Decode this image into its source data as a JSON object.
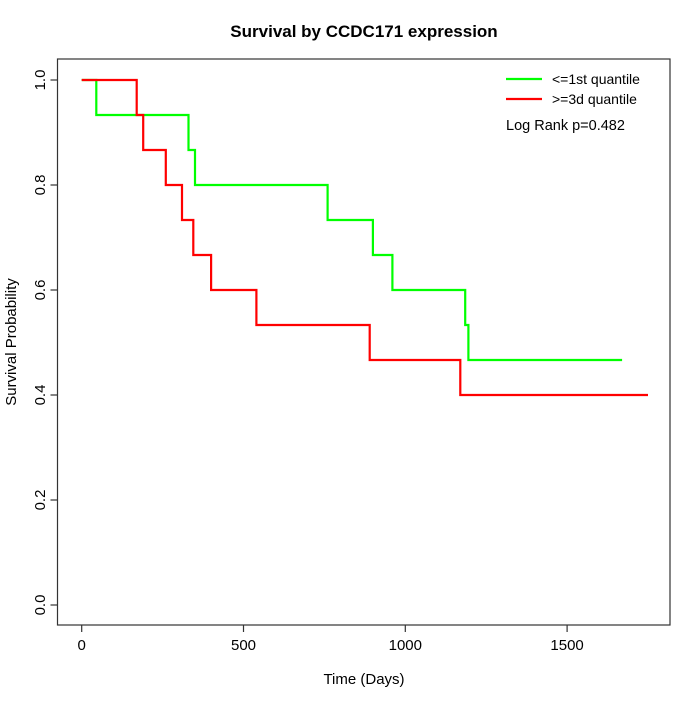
{
  "title": "Survival by CCDC171 expression",
  "x_axis": {
    "label": "Time (Days)",
    "ticks": [
      "0",
      "500",
      "1000",
      "1500"
    ],
    "tick_values": [
      0,
      500,
      1000,
      1500
    ]
  },
  "y_axis": {
    "label": "Survival Probability",
    "ticks": [
      "0.0",
      "0.2",
      "0.4",
      "0.6",
      "0.8",
      "1.0"
    ],
    "tick_values": [
      0,
      0.2,
      0.4,
      0.6,
      0.8,
      1.0
    ]
  },
  "legend": {
    "items": [
      {
        "label": "<=1st quantile",
        "color": "#00ff00"
      },
      {
        "label": ">=3d quantile",
        "color": "#ff0000"
      }
    ],
    "stat_label": "Log Rank p=0.482"
  },
  "chart_data": {
    "type": "line",
    "variant": "kaplan-meier-step",
    "title": "Survival by CCDC171 expression",
    "xlabel": "Time (Days)",
    "ylabel": "Survival Probability",
    "xlim": [
      0,
      1800
    ],
    "ylim": [
      0,
      1
    ],
    "x_ticks": [
      0,
      500,
      1000,
      1500
    ],
    "y_ticks": [
      0.0,
      0.2,
      0.4,
      0.6,
      0.8,
      1.0
    ],
    "grid": false,
    "legend_position": "top-right",
    "annotation": "Log Rank p=0.482",
    "series": [
      {
        "name": "<=1st quantile",
        "color": "#00ff00",
        "start": [
          0,
          1.0
        ],
        "events": [
          [
            45,
            0.9333
          ],
          [
            330,
            0.8667
          ],
          [
            350,
            0.8
          ],
          [
            760,
            0.7333
          ],
          [
            900,
            0.6667
          ],
          [
            960,
            0.6
          ],
          [
            1185,
            0.5333
          ],
          [
            1195,
            0.4667
          ]
        ],
        "end_time": 1670
      },
      {
        "name": ">=3d quantile",
        "color": "#ff0000",
        "start": [
          0,
          1.0
        ],
        "events": [
          [
            170,
            0.9333
          ],
          [
            190,
            0.8667
          ],
          [
            260,
            0.8
          ],
          [
            310,
            0.7333
          ],
          [
            345,
            0.6667
          ],
          [
            400,
            0.6
          ],
          [
            540,
            0.5333
          ],
          [
            890,
            0.4667
          ],
          [
            1170,
            0.4
          ]
        ],
        "end_time": 1750
      }
    ]
  }
}
